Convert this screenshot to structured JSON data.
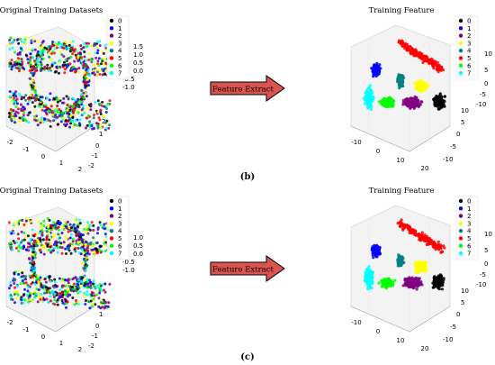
{
  "arrow": {
    "label": "Feature Extract",
    "fill": "#d9534f",
    "stroke": "#000000"
  },
  "panel_labels": [
    "(b)",
    "(c)"
  ],
  "legend_colors": [
    "#000000",
    "#0000ff",
    "#800080",
    "#ffff00",
    "#008080",
    "#ff0000",
    "#00ff00",
    "#00ffff"
  ],
  "chart_data": [
    {
      "type": "scatter",
      "title": "Original Training Datasets",
      "legend": [
        "0",
        "1",
        "2",
        "3",
        "4",
        "5",
        "6",
        "7"
      ],
      "x_ticks": [
        "-2",
        "-1",
        "0",
        "1",
        "2"
      ],
      "y_ticks": [
        "2",
        "1",
        "0",
        "-1",
        "-2"
      ],
      "z_ticks": [
        "1.5",
        "1.0",
        "0.5",
        "0.0",
        "-0.5",
        "-1.0"
      ],
      "xlim": [
        -2,
        2
      ],
      "ylim": [
        -2,
        2
      ],
      "zlim": [
        -1,
        1.5
      ]
    },
    {
      "type": "scatter",
      "title": "Training Feature",
      "legend": [
        "0",
        "1",
        "2",
        "3",
        "4",
        "5",
        "6",
        "7"
      ],
      "x_ticks": [
        "-10",
        "0",
        "10",
        "20"
      ],
      "y_ticks": [
        "10",
        "5",
        "0",
        "-5",
        "-10"
      ],
      "z_ticks": [
        "10",
        "5",
        "0",
        "-5",
        "-10"
      ],
      "xlim": [
        -10,
        20
      ],
      "ylim": [
        -10,
        10
      ],
      "zlim": [
        -10,
        10
      ]
    },
    {
      "type": "scatter",
      "title": "Original Training Datasets",
      "legend": [
        "0",
        "1",
        "2",
        "3",
        "4",
        "5",
        "6",
        "7"
      ],
      "x_ticks": [
        "-2",
        "-1",
        "0",
        "1",
        "2"
      ],
      "y_ticks": [
        "2",
        "1",
        "0",
        "-1",
        "-2"
      ],
      "z_ticks": [
        "1.0",
        "0.5",
        "0.0",
        "-0.5",
        "-1.0"
      ],
      "xlim": [
        -2,
        2
      ],
      "ylim": [
        -2,
        2
      ],
      "zlim": [
        -1,
        1
      ]
    },
    {
      "type": "scatter",
      "title": "Training Feature",
      "legend": [
        "0",
        "1",
        "2",
        "3",
        "4",
        "5",
        "6",
        "7"
      ],
      "x_ticks": [
        "-10",
        "0",
        "10",
        "20"
      ],
      "y_ticks": [
        "10",
        "5",
        "0",
        "-5",
        "-10"
      ],
      "z_ticks": [
        "10",
        "5",
        "0",
        "-5",
        "-10"
      ],
      "xlim": [
        -10,
        20
      ],
      "ylim": [
        -10,
        10
      ],
      "zlim": [
        -10,
        10
      ]
    }
  ]
}
